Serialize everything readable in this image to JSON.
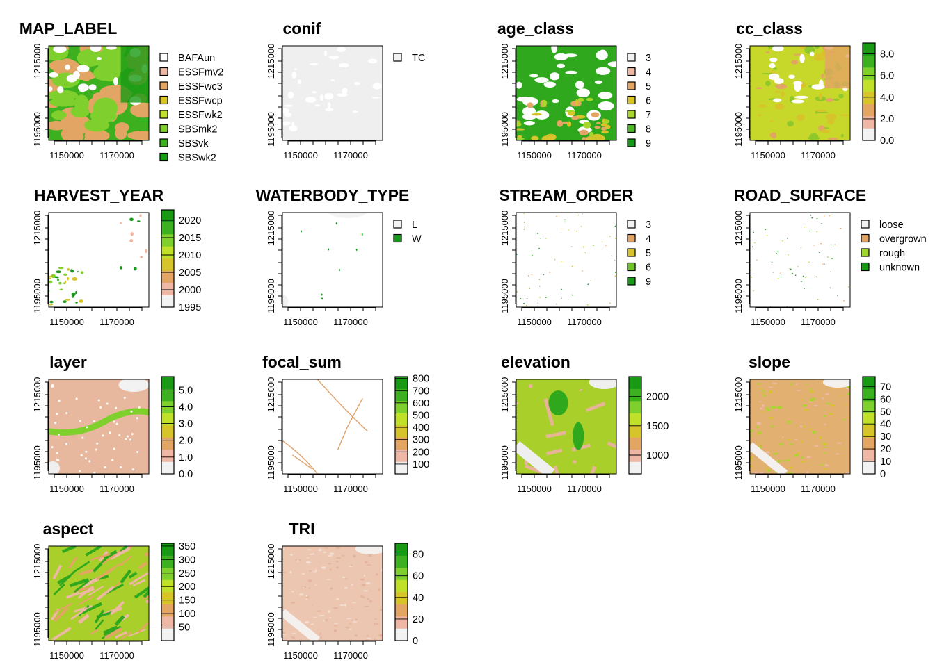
{
  "chart_data": [
    {
      "type": "raster",
      "title": "MAP_LABEL",
      "legend": "categorical",
      "xticks": [
        "1150000",
        "1170000"
      ],
      "yticks": [
        "1195000",
        "1215000"
      ],
      "legend_items": [
        {
          "label": "BAFAun",
          "color": "#ffffff"
        },
        {
          "label": "ESSFmv2",
          "color": "#eeb8a5"
        },
        {
          "label": "ESSFwc3",
          "color": "#e3a564"
        },
        {
          "label": "ESSFwcp",
          "color": "#d7c42a"
        },
        {
          "label": "ESSFwk2",
          "color": "#c0e02a"
        },
        {
          "label": "SBSmk2",
          "color": "#7fd02c"
        },
        {
          "label": "SBSvk",
          "color": "#3cb01e"
        },
        {
          "label": "SBSwk2",
          "color": "#189a14"
        }
      ]
    },
    {
      "type": "raster",
      "title": "conif",
      "legend": "categorical",
      "xticks": [
        "1150000",
        "1170000"
      ],
      "yticks": [
        "1195000",
        "1215000"
      ],
      "legend_items": [
        {
          "label": "TC",
          "color": "#f2f2f2"
        }
      ]
    },
    {
      "type": "raster",
      "title": "age_class",
      "legend": "categorical",
      "xticks": [
        "1150000",
        "1170000"
      ],
      "yticks": [
        "1195000",
        "1215000"
      ],
      "legend_items": [
        {
          "label": "3",
          "color": "#f2f2f2"
        },
        {
          "label": "4",
          "color": "#eeb8a5"
        },
        {
          "label": "5",
          "color": "#e3a564"
        },
        {
          "label": "6",
          "color": "#d7c42a"
        },
        {
          "label": "7",
          "color": "#a8d62a"
        },
        {
          "label": "8",
          "color": "#4cb82a"
        },
        {
          "label": "9",
          "color": "#17991a"
        }
      ]
    },
    {
      "type": "raster",
      "title": "cc_class",
      "legend": "continuous",
      "xticks": [
        "1150000",
        "1170000"
      ],
      "yticks": [
        "1195000",
        "1215000"
      ],
      "range": [
        0,
        9
      ],
      "ticks": [
        0,
        2,
        4,
        6,
        8
      ],
      "tick_labels": [
        "0.0",
        "2.0",
        "4.0",
        "6.0",
        "8.0"
      ]
    },
    {
      "type": "raster",
      "title": "HARVEST_YEAR",
      "legend": "continuous",
      "xticks": [
        "1150000",
        "1170000"
      ],
      "yticks": [
        "1195000",
        "1215000"
      ],
      "range": [
        1995,
        2023
      ],
      "ticks": [
        1995,
        2000,
        2005,
        2010,
        2015,
        2020
      ],
      "tick_labels": [
        "1995",
        "2000",
        "2005",
        "2010",
        "2015",
        "2020"
      ]
    },
    {
      "type": "raster",
      "title": "WATERBODY_TYPE",
      "legend": "categorical",
      "xticks": [
        "1150000",
        "1170000"
      ],
      "yticks": [
        "1195000",
        "1215000"
      ],
      "legend_items": [
        {
          "label": "L",
          "color": "#f2f2f2"
        },
        {
          "label": "W",
          "color": "#17991a"
        }
      ]
    },
    {
      "type": "raster",
      "title": "STREAM_ORDER",
      "legend": "categorical",
      "xticks": [
        "1150000",
        "1170000"
      ],
      "yticks": [
        "1195000",
        "1215000"
      ],
      "legend_items": [
        {
          "label": "3",
          "color": "#f2f2f2"
        },
        {
          "label": "4",
          "color": "#e3a564"
        },
        {
          "label": "5",
          "color": "#d7c42a"
        },
        {
          "label": "6",
          "color": "#6cc42a"
        },
        {
          "label": "9",
          "color": "#17991a"
        }
      ]
    },
    {
      "type": "raster",
      "title": "ROAD_SURFACE",
      "legend": "categorical",
      "xticks": [
        "1150000",
        "1170000"
      ],
      "yticks": [
        "1195000",
        "1215000"
      ],
      "legend_items": [
        {
          "label": "loose",
          "color": "#f2f2f2"
        },
        {
          "label": "overgrown",
          "color": "#e3a564"
        },
        {
          "label": "rough",
          "color": "#9ed62a"
        },
        {
          "label": "unknown",
          "color": "#17991a"
        }
      ]
    },
    {
      "type": "raster",
      "title": "layer",
      "legend": "continuous",
      "xticks": [
        "1150000",
        "1170000"
      ],
      "yticks": [
        "1195000",
        "1215000"
      ],
      "range": [
        0,
        5.8
      ],
      "ticks": [
        0,
        1,
        2,
        3,
        4,
        5
      ],
      "tick_labels": [
        "0.0",
        "1.0",
        "2.0",
        "3.0",
        "4.0",
        "5.0"
      ]
    },
    {
      "type": "raster",
      "title": "focal_sum",
      "legend": "continuous",
      "xticks": [
        "1150000",
        "1170000"
      ],
      "yticks": [
        "1195000",
        "1215000"
      ],
      "range": [
        20,
        815
      ],
      "ticks": [
        100,
        200,
        300,
        400,
        500,
        600,
        700,
        800
      ],
      "tick_labels": [
        "100",
        "200",
        "300",
        "400",
        "500",
        "600",
        "700",
        "800"
      ]
    },
    {
      "type": "raster",
      "title": "elevation",
      "legend": "continuous",
      "xticks": [
        "1150000",
        "1170000"
      ],
      "yticks": [
        "1195000",
        "1215000"
      ],
      "range": [
        680,
        2340
      ],
      "ticks": [
        1000,
        1500,
        2000
      ],
      "tick_labels": [
        "1000",
        "1500",
        "2000"
      ]
    },
    {
      "type": "raster",
      "title": "slope",
      "legend": "continuous",
      "xticks": [
        "1150000",
        "1170000"
      ],
      "yticks": [
        "1195000",
        "1215000"
      ],
      "range": [
        0,
        78
      ],
      "ticks": [
        0,
        10,
        20,
        30,
        40,
        50,
        60,
        70
      ],
      "tick_labels": [
        "0",
        "10",
        "20",
        "30",
        "40",
        "50",
        "60",
        "70"
      ]
    },
    {
      "type": "raster",
      "title": "aspect",
      "legend": "continuous",
      "xticks": [
        "1150000",
        "1170000"
      ],
      "yticks": [
        "1195000",
        "1215000"
      ],
      "range": [
        0,
        360
      ],
      "ticks": [
        50,
        100,
        150,
        200,
        250,
        300,
        350
      ],
      "tick_labels": [
        "50",
        "100",
        "150",
        "200",
        "250",
        "300",
        "350"
      ]
    },
    {
      "type": "raster",
      "title": "TRI",
      "legend": "continuous",
      "xticks": [
        "1150000",
        "1170000"
      ],
      "yticks": [
        "1195000",
        "1215000"
      ],
      "range": [
        0,
        90
      ],
      "ticks": [
        0,
        20,
        40,
        60,
        80
      ],
      "tick_labels": [
        "0",
        "20",
        "40",
        "60",
        "80"
      ]
    }
  ],
  "palette": [
    "#f2f2f2",
    "#eeb8a5",
    "#e3a564",
    "#d7c42a",
    "#c0e02a",
    "#7fd02c",
    "#3cb01e",
    "#189a14"
  ]
}
